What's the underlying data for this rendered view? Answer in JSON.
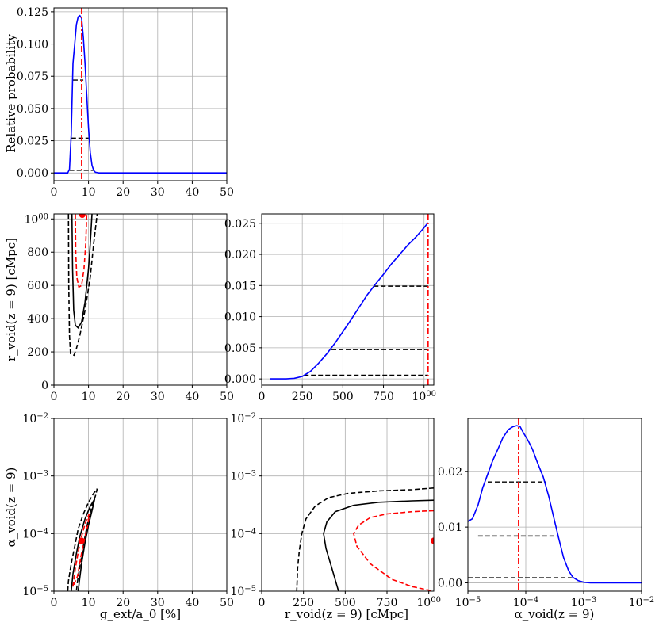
{
  "chart_data": [
    {
      "id": "g_marginal",
      "type": "line",
      "xlabel": "",
      "ylabel": "Relative probability",
      "xlim": [
        0,
        50
      ],
      "ylim": [
        -0.006,
        0.128
      ],
      "xticks": [
        0,
        10,
        20,
        30,
        40,
        50
      ],
      "xtick_labels": [
        "0",
        "10",
        "20",
        "30",
        "40",
        "50"
      ],
      "yticks": [
        0,
        0.025,
        0.05,
        0.075,
        0.1,
        0.125
      ],
      "ytick_labels": [
        "0.000",
        "0.025",
        "0.050",
        "0.075",
        "0.100",
        "0.125"
      ],
      "grid": true,
      "curve": {
        "color": "#0000ff",
        "x": [
          0,
          4.0,
          4.5,
          5.0,
          5.5,
          6.0,
          6.5,
          7.0,
          7.5,
          8.0,
          8.5,
          9.0,
          9.5,
          10.0,
          10.5,
          11.0,
          11.5,
          12.0,
          13.0,
          15.0,
          50.0
        ],
        "y": [
          0.0,
          0.0,
          0.003,
          0.03,
          0.085,
          0.1,
          0.115,
          0.121,
          0.122,
          0.12,
          0.105,
          0.085,
          0.06,
          0.035,
          0.016,
          0.006,
          0.002,
          0.0005,
          0.0,
          0.0,
          0.0
        ]
      },
      "vline": {
        "x": 8.0,
        "color": "#ff0000",
        "style": "dashdot"
      },
      "levels": [
        {
          "y": 0.072,
          "x1": 5.5,
          "x2": 8.5
        },
        {
          "y": 0.027,
          "x1": 5.0,
          "x2": 10.0
        },
        {
          "y": 0.002,
          "x1": 4.5,
          "x2": 11.5
        }
      ]
    },
    {
      "id": "g_rvoid",
      "type": "line",
      "xlabel": "",
      "ylabel": "r_void(z = 9) [cMpc]",
      "xlim": [
        0,
        50
      ],
      "ylim": [
        0,
        1030
      ],
      "xticks": [
        0,
        10,
        20,
        30,
        40,
        50
      ],
      "xtick_labels": [
        "0",
        "10",
        "20",
        "30",
        "40",
        "50"
      ],
      "yticks": [
        0,
        200,
        400,
        600,
        800,
        1000
      ],
      "ytick_labels": [
        "0",
        "200",
        "400",
        "600",
        "800",
        "1000"
      ],
      "grid": true,
      "contours": [
        {
          "color": "#000000",
          "style": "dashed",
          "points": [
            [
              4.2,
              1030
            ],
            [
              4.3,
              600
            ],
            [
              4.5,
              300
            ],
            [
              4.8,
              190
            ],
            [
              5.8,
              180
            ],
            [
              6.5,
              220
            ],
            [
              7.5,
              300
            ],
            [
              9.0,
              450
            ],
            [
              10.5,
              650
            ],
            [
              11.5,
              850
            ],
            [
              12.5,
              1030
            ]
          ]
        },
        {
          "color": "#000000",
          "style": "solid",
          "points": [
            [
              5.2,
              1030
            ],
            [
              5.4,
              700
            ],
            [
              5.7,
              450
            ],
            [
              6.2,
              360
            ],
            [
              7.0,
              345
            ],
            [
              8.0,
              380
            ],
            [
              9.0,
              500
            ],
            [
              10.0,
              700
            ],
            [
              10.5,
              850
            ],
            [
              11.0,
              1030
            ]
          ]
        },
        {
          "color": "#ff0000",
          "style": "dashed",
          "points": [
            [
              6.2,
              1030
            ],
            [
              6.3,
              800
            ],
            [
              6.6,
              650
            ],
            [
              7.2,
              590
            ],
            [
              8.0,
              600
            ],
            [
              8.7,
              700
            ],
            [
              9.2,
              850
            ],
            [
              9.5,
              1030
            ]
          ]
        }
      ],
      "points": [
        {
          "x": 8.2,
          "y": 1025,
          "color": "#ff0000"
        }
      ]
    },
    {
      "id": "rvoid_marginal",
      "type": "line",
      "xlabel": "",
      "ylabel": "",
      "xlim": [
        0,
        1060
      ],
      "ylim": [
        -0.001,
        0.0265
      ],
      "xticks": [
        0,
        250,
        500,
        750,
        1000
      ],
      "xtick_labels": [
        "0",
        "250",
        "500",
        "750",
        "1000"
      ],
      "yticks": [
        0,
        0.005,
        0.01,
        0.015,
        0.02,
        0.025
      ],
      "ytick_labels": [
        "0.000",
        "0.005",
        "0.010",
        "0.015",
        "0.020",
        "0.025"
      ],
      "grid": true,
      "curve": {
        "color": "#0000ff",
        "x": [
          50,
          150,
          200,
          250,
          300,
          350,
          400,
          450,
          500,
          550,
          600,
          650,
          700,
          750,
          800,
          850,
          900,
          950,
          1000,
          1025
        ],
        "y": [
          0.0,
          0.0,
          0.0001,
          0.0004,
          0.0012,
          0.0025,
          0.004,
          0.0057,
          0.0076,
          0.0095,
          0.0115,
          0.0135,
          0.0152,
          0.0168,
          0.0185,
          0.02,
          0.0215,
          0.0228,
          0.0243,
          0.0251
        ]
      },
      "vline": {
        "x": 1025,
        "color": "#ff0000",
        "style": "dashdot"
      },
      "levels": [
        {
          "y": 0.0149,
          "x1": 690,
          "x2": 1025
        },
        {
          "y": 0.0047,
          "x1": 430,
          "x2": 1025
        },
        {
          "y": 0.0006,
          "x1": 260,
          "x2": 1025
        }
      ]
    },
    {
      "id": "g_alpha",
      "type": "line",
      "xlabel": "g_ext/a_0 [%]",
      "ylabel": "α_void(z = 9)",
      "xlim": [
        0,
        50
      ],
      "ylim": [
        1e-05,
        0.01
      ],
      "yscale": "log",
      "xticks": [
        0,
        10,
        20,
        30,
        40,
        50
      ],
      "xtick_labels": [
        "0",
        "10",
        "20",
        "30",
        "40",
        "50"
      ],
      "yticks": [
        1e-05,
        0.0001,
        0.001,
        0.01
      ],
      "ytick_labels": [
        "10−5",
        "10−4",
        "10−3",
        "10−2"
      ],
      "grid": true,
      "contours": [
        {
          "color": "#000000",
          "style": "dashed",
          "points": [
            [
              4.0,
              1e-05
            ],
            [
              4.2,
              1.5e-05
            ],
            [
              5.0,
              3e-05
            ],
            [
              6.0,
              6e-05
            ],
            [
              7.0,
              0.00012
            ],
            [
              8.5,
              0.00022
            ],
            [
              10.0,
              0.00035
            ],
            [
              11.5,
              0.0005
            ],
            [
              12.5,
              0.0006
            ],
            [
              12.0,
              0.00045
            ],
            [
              11.0,
              0.0003
            ],
            [
              10.0,
              0.00018
            ],
            [
              9.0,
              9e-05
            ],
            [
              8.0,
              4e-05
            ],
            [
              7.0,
              1.8e-05
            ],
            [
              6.5,
              1e-05
            ]
          ]
        },
        {
          "color": "#000000",
          "style": "solid",
          "points": [
            [
              5.0,
              1e-05
            ],
            [
              5.5,
              2e-05
            ],
            [
              6.5,
              4.5e-05
            ],
            [
              7.5,
              9e-05
            ],
            [
              9.0,
              0.00018
            ],
            [
              10.5,
              0.0003
            ],
            [
              11.8,
              0.0004
            ],
            [
              11.0,
              0.00025
            ],
            [
              10.0,
              0.00014
            ],
            [
              9.0,
              7e-05
            ],
            [
              8.0,
              3e-05
            ],
            [
              7.0,
              1e-05
            ]
          ]
        },
        {
          "color": "#ff0000",
          "style": "dashed",
          "points": [
            [
              5.5,
              1.2e-05
            ],
            [
              6.2,
              2.5e-05
            ],
            [
              7.2,
              5.5e-05
            ],
            [
              8.2,
              0.0001
            ],
            [
              9.2,
              0.00016
            ],
            [
              10.2,
              0.00022
            ],
            [
              9.8,
              0.00014
            ],
            [
              8.8,
              8e-05
            ],
            [
              7.8,
              4e-05
            ],
            [
              6.8,
              1.8e-05
            ],
            [
              5.5,
              1.2e-05
            ]
          ]
        }
      ],
      "points": [
        {
          "x": 8.0,
          "y": 7.5e-05,
          "color": "#ff0000"
        }
      ]
    },
    {
      "id": "rvoid_alpha",
      "type": "line",
      "xlabel": "r_void(z = 9) [cMpc]",
      "ylabel": "",
      "xlim": [
        0,
        1030
      ],
      "ylim": [
        1e-05,
        0.01
      ],
      "yscale": "log",
      "xticks": [
        0,
        250,
        500,
        750,
        1000
      ],
      "xtick_labels": [
        "0",
        "250",
        "500",
        "750",
        "1000"
      ],
      "yticks": [
        1e-05,
        0.0001,
        0.001,
        0.01
      ],
      "ytick_labels": [
        "10−5",
        "10−4",
        "10−3",
        "10−2"
      ],
      "grid": true,
      "contours": [
        {
          "color": "#000000",
          "style": "dashed",
          "points": [
            [
              1030,
              0.00062
            ],
            [
              900,
              0.00058
            ],
            [
              700,
              0.00055
            ],
            [
              520,
              0.0005
            ],
            [
              400,
              0.00042
            ],
            [
              320,
              0.0003
            ],
            [
              265,
              0.00018
            ],
            [
              240,
              0.0001
            ],
            [
              225,
              5e-05
            ],
            [
              215,
              2.5e-05
            ],
            [
              210,
              1e-05
            ]
          ]
        },
        {
          "color": "#000000",
          "style": "solid",
          "points": [
            [
              1030,
              0.00038
            ],
            [
              900,
              0.00037
            ],
            [
              700,
              0.00035
            ],
            [
              550,
              0.00031
            ],
            [
              440,
              0.00024
            ],
            [
              390,
              0.00016
            ],
            [
              370,
              0.0001
            ],
            [
              385,
              5.5e-05
            ],
            [
              420,
              2.5e-05
            ],
            [
              460,
              1e-05
            ]
          ]
        },
        {
          "color": "#ff0000",
          "style": "dashed",
          "points": [
            [
              1030,
              0.00025
            ],
            [
              900,
              0.00024
            ],
            [
              750,
              0.00022
            ],
            [
              650,
              0.00019
            ],
            [
              580,
              0.00014
            ],
            [
              550,
              0.0001
            ],
            [
              570,
              6e-05
            ],
            [
              650,
              3e-05
            ],
            [
              780,
              1.6e-05
            ],
            [
              900,
              1.2e-05
            ],
            [
              1030,
              1e-05
            ]
          ]
        }
      ],
      "points": [
        {
          "x": 1030,
          "y": 7.5e-05,
          "color": "#ff0000"
        }
      ]
    },
    {
      "id": "alpha_marginal",
      "type": "line",
      "xlabel": "α_void(z = 9)",
      "ylabel": "",
      "xscale": "log",
      "xlim": [
        1e-05,
        0.01
      ],
      "ylim": [
        -0.0015,
        0.0295
      ],
      "xticks": [
        1e-05,
        0.0001,
        0.001,
        0.01
      ],
      "xtick_labels": [
        "10−5",
        "10−4",
        "10−3",
        "10−2"
      ],
      "yticks": [
        0,
        0.01,
        0.02
      ],
      "ytick_labels": [
        "0.00",
        "0.01",
        "0.02"
      ],
      "grid": true,
      "curve": {
        "color": "#0000ff",
        "x": [
          1e-05,
          1.2e-05,
          1.5e-05,
          1.8e-05,
          2.2e-05,
          2.7e-05,
          3.3e-05,
          4e-05,
          5e-05,
          6e-05,
          7e-05,
          8e-05,
          9e-05,
          0.00011,
          0.00013,
          0.00016,
          0.0002,
          0.00025,
          0.0003,
          0.00037,
          0.00045,
          0.00055,
          0.00065,
          0.0008,
          0.001,
          0.0013,
          0.002,
          0.005,
          0.01
        ],
        "y": [
          0.011,
          0.0115,
          0.014,
          0.017,
          0.0195,
          0.022,
          0.024,
          0.026,
          0.0275,
          0.028,
          0.0282,
          0.028,
          0.027,
          0.0255,
          0.024,
          0.0215,
          0.019,
          0.0155,
          0.012,
          0.008,
          0.0045,
          0.0022,
          0.001,
          0.0004,
          0.0001,
          0.0,
          0.0,
          0.0,
          0.0
        ]
      },
      "vline": {
        "x": 7.5e-05,
        "color": "#ff0000",
        "style": "dashdot"
      },
      "levels": [
        {
          "y": 0.0181,
          "x1": 2.2e-05,
          "x2": 0.00022
        },
        {
          "y": 0.0084,
          "x1": 1.5e-05,
          "x2": 0.00036
        },
        {
          "y": 0.0009,
          "x1": 1e-05,
          "x2": 0.00062
        }
      ]
    }
  ]
}
